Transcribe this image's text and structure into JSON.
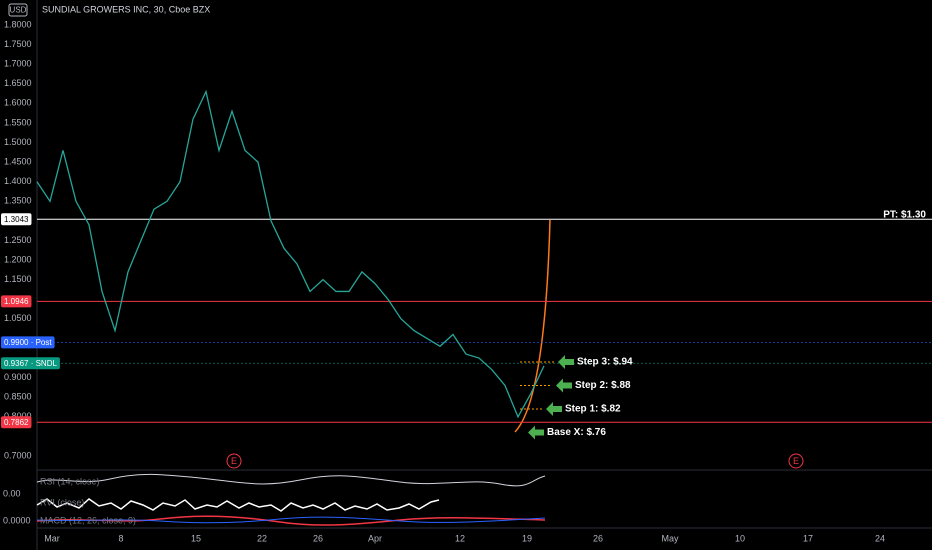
{
  "header": {
    "currency": "USD",
    "title": "SUNDIAL GROWERS INC, 30, Cboe BZX"
  },
  "price_scale": {
    "ylim": [
      0.7,
      1.8
    ],
    "ticks": [
      {
        "value": 1.8,
        "label": "1.8000"
      },
      {
        "value": 1.75,
        "label": "1.7500"
      },
      {
        "value": 1.7,
        "label": "1.7000"
      },
      {
        "value": 1.65,
        "label": "1.6500"
      },
      {
        "value": 1.6,
        "label": "1.6000"
      },
      {
        "value": 1.55,
        "label": "1.5500"
      },
      {
        "value": 1.5,
        "label": "1.5000"
      },
      {
        "value": 1.45,
        "label": "1.4500"
      },
      {
        "value": 1.4,
        "label": "1.4000"
      },
      {
        "value": 1.35,
        "label": "1.3500"
      },
      {
        "value": 1.25,
        "label": "1.2500"
      },
      {
        "value": 1.2,
        "label": "1.2000"
      },
      {
        "value": 1.15,
        "label": "1.1500"
      },
      {
        "value": 1.05,
        "label": "1.0500"
      },
      {
        "value": 0.9,
        "label": "0.9000"
      },
      {
        "value": 0.85,
        "label": "0.8500"
      },
      {
        "value": 0.8,
        "label": "0.8000"
      },
      {
        "value": 0.7,
        "label": "0.7000"
      }
    ]
  },
  "levels": [
    {
      "value": 1.3043,
      "label": "1.3043",
      "color": "#ffffff",
      "text_color": "#000000"
    },
    {
      "value": 1.0946,
      "label": "1.0946",
      "color": "#f23645",
      "text_color": "#ffffff"
    },
    {
      "value": 0.99,
      "label": "0.9900 · Post",
      "color": "#2962ff",
      "text_color": "#ffffff"
    },
    {
      "value": 0.9367,
      "label": "0.9367 · SNDL",
      "color": "#089981",
      "text_color": "#ffffff"
    },
    {
      "value": 0.7862,
      "label": "0.7862",
      "color": "#f23645",
      "text_color": "#ffffff"
    }
  ],
  "price_path": [
    1.4,
    1.35,
    1.48,
    1.35,
    1.29,
    1.12,
    1.02,
    1.17,
    1.25,
    1.33,
    1.35,
    1.4,
    1.56,
    1.63,
    1.48,
    1.58,
    1.48,
    1.45,
    1.3,
    1.23,
    1.19,
    1.12,
    1.15,
    1.12,
    1.12,
    1.17,
    1.14,
    1.1,
    1.05,
    1.02,
    1.0,
    0.98,
    1.01,
    0.96,
    0.95,
    0.92,
    0.88,
    0.8,
    0.86,
    0.93
  ],
  "annotations": [
    {
      "text": "PT: $1.30",
      "value": 1.3
    },
    {
      "text": "Step 3: $.94",
      "value": 0.94
    },
    {
      "text": "Step 2: $.88",
      "value": 0.88
    },
    {
      "text": "Step 1: $.82",
      "value": 0.82
    },
    {
      "text": "Base X: $.76",
      "value": 0.76
    }
  ],
  "earnings_marker": "E",
  "indicators": [
    {
      "name": "RSI (14, close)"
    },
    {
      "name": "RVI (close)"
    },
    {
      "name": "MACD (12, 26, close, 9)"
    }
  ],
  "indicator_scales": [
    "0.00",
    "0.0000"
  ],
  "time_axis": [
    "Mar",
    "8",
    "15",
    "22",
    "26",
    "Apr",
    "12",
    "19",
    "26",
    "May",
    "10",
    "17",
    "24"
  ]
}
